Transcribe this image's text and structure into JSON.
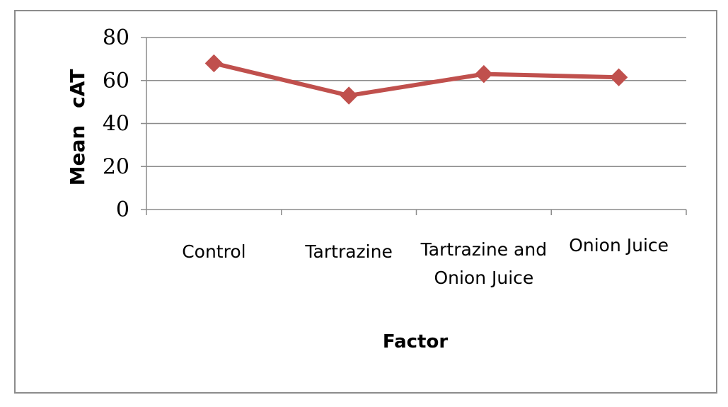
{
  "chart_data": {
    "type": "line",
    "categories": [
      "Control",
      "Tartrazine",
      "Tartrazine and Onion Juice",
      "Onion Juice"
    ],
    "category_lines": [
      [
        "Control"
      ],
      [
        "Tartrazine"
      ],
      [
        "Tartrazine and",
        "Onion Juice"
      ],
      [
        "Onion Juice"
      ]
    ],
    "series": [
      {
        "values": [
          68,
          53,
          63,
          61.5
        ],
        "color": "#c0504d",
        "marker": "diamond"
      }
    ],
    "xlabel": "Factor",
    "ylabel_parts": [
      "Mean",
      "cAT"
    ],
    "ylim": [
      0,
      80
    ],
    "yticks": [
      0,
      20,
      40,
      60,
      80
    ],
    "grid": true,
    "gridline_color": "#8c8c8c",
    "legend": "none"
  }
}
